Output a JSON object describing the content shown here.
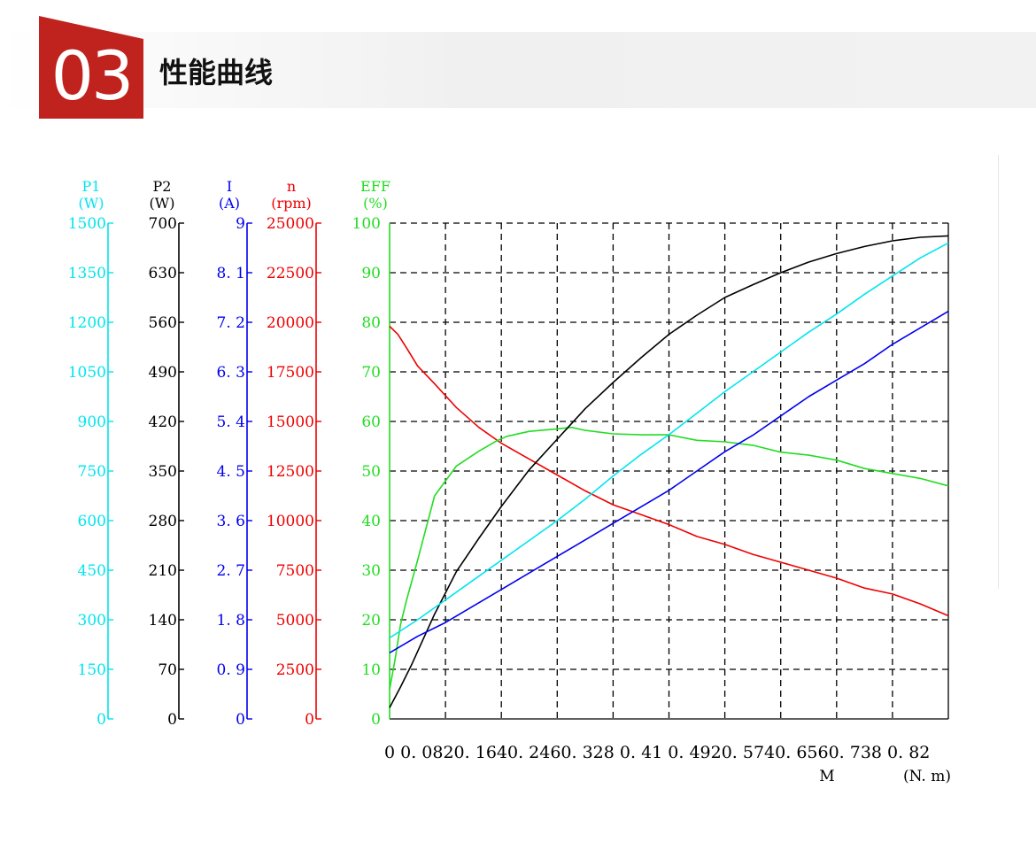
{
  "header": {
    "number": "03",
    "title": "性能曲线",
    "accent_color": "#c0221e"
  },
  "chart_data": {
    "type": "line",
    "x": {
      "ticks": [
        "0",
        "0.082",
        "0.164",
        "0.246",
        "0.328",
        "0.41",
        "0.492",
        "0.574",
        "0.656",
        "0.738",
        "0.82"
      ],
      "tick_label_text": "0   0. 0820. 1640. 2460. 328 0. 41 0. 4920. 5740. 6560. 738 0. 82",
      "label": "M",
      "unit": "(N. m)",
      "range": [
        0,
        0.82
      ]
    },
    "grid": true,
    "axes": [
      {
        "key": "P1",
        "name": "P1",
        "unit": "(W)",
        "color": "#00e5ee",
        "range": [
          0,
          1500
        ],
        "ticks": [
          "1500",
          "1350",
          "1200",
          "1050",
          "900",
          "750",
          "600",
          "450",
          "300",
          "150",
          "0"
        ]
      },
      {
        "key": "P2",
        "name": "P2",
        "unit": "(W)",
        "color": "#000000",
        "range": [
          0,
          700
        ],
        "ticks": [
          "700",
          "630",
          "560",
          "490",
          "420",
          "350",
          "280",
          "210",
          "140",
          "70",
          "0"
        ]
      },
      {
        "key": "I",
        "name": "I",
        "unit": "(A)",
        "color": "#0000ee",
        "range": [
          0,
          9
        ],
        "ticks": [
          "9",
          "8. 1",
          "7. 2",
          "6. 3",
          "5. 4",
          "4. 5",
          "3. 6",
          "2. 7",
          "1. 8",
          "0. 9",
          "0"
        ]
      },
      {
        "key": "n",
        "name": "n",
        "unit": "(rpm)",
        "color": "#ee0000",
        "range": [
          0,
          25000
        ],
        "ticks": [
          "25000",
          "22500",
          "20000",
          "17500",
          "15000",
          "12500",
          "10000",
          "7500",
          "5000",
          "2500",
          "0"
        ]
      },
      {
        "key": "EFF",
        "name": "EFF",
        "unit": "(%)",
        "color": "#22dd22",
        "range": [
          0,
          100
        ],
        "ticks": [
          "100",
          "90",
          "80",
          "70",
          "60",
          "50",
          "40",
          "30",
          "20",
          "10",
          "0"
        ]
      }
    ],
    "series": [
      {
        "axis": "n",
        "color": "#ee0000",
        "x": [
          0,
          0.012,
          0.025,
          0.041,
          0.066,
          0.098,
          0.131,
          0.164,
          0.205,
          0.246,
          0.287,
          0.328,
          0.369,
          0.41,
          0.451,
          0.492,
          0.533,
          0.574,
          0.615,
          0.656,
          0.697,
          0.738,
          0.779,
          0.82
        ],
        "values": [
          19800,
          19400,
          18700,
          17800,
          16900,
          15700,
          14700,
          13900,
          13100,
          12300,
          11500,
          10800,
          10300,
          9800,
          9200,
          8800,
          8300,
          7900,
          7500,
          7100,
          6600,
          6300,
          5800,
          5200
        ]
      },
      {
        "axis": "EFF",
        "color": "#22dd22",
        "x": [
          0,
          0.008,
          0.016,
          0.025,
          0.041,
          0.066,
          0.098,
          0.131,
          0.156,
          0.172,
          0.205,
          0.246,
          0.267,
          0.287,
          0.328,
          0.369,
          0.41,
          0.451,
          0.492,
          0.533,
          0.574,
          0.615,
          0.656,
          0.697,
          0.738,
          0.779,
          0.82
        ],
        "values": [
          6,
          12,
          19,
          24,
          32,
          45,
          51,
          54,
          56,
          57,
          58,
          58.5,
          58.8,
          58.2,
          57.5,
          57.3,
          57.3,
          56.2,
          55.9,
          55.2,
          53.8,
          53.2,
          52.2,
          50.5,
          49.5,
          48.5,
          47
        ]
      },
      {
        "axis": "P2",
        "color": "#000000",
        "x": [
          0,
          0.016,
          0.033,
          0.049,
          0.066,
          0.098,
          0.131,
          0.164,
          0.205,
          0.246,
          0.287,
          0.328,
          0.369,
          0.41,
          0.451,
          0.492,
          0.533,
          0.574,
          0.615,
          0.656,
          0.697,
          0.738,
          0.779,
          0.82
        ],
        "values": [
          16,
          45,
          78,
          112,
          148,
          208,
          255,
          300,
          352,
          395,
          438,
          475,
          510,
          543,
          570,
          595,
          613,
          630,
          645,
          657,
          667,
          675,
          680,
          682
        ]
      },
      {
        "axis": "P1",
        "color": "#00e5ee",
        "x": [
          0,
          0.041,
          0.082,
          0.123,
          0.164,
          0.205,
          0.246,
          0.287,
          0.328,
          0.369,
          0.41,
          0.451,
          0.492,
          0.533,
          0.574,
          0.615,
          0.656,
          0.697,
          0.738,
          0.779,
          0.82
        ],
        "values": [
          245,
          300,
          360,
          420,
          480,
          540,
          600,
          665,
          735,
          800,
          860,
          925,
          990,
          1050,
          1110,
          1170,
          1225,
          1285,
          1340,
          1395,
          1440
        ]
      },
      {
        "axis": "I",
        "color": "#0000ee",
        "x": [
          0,
          0.041,
          0.082,
          0.123,
          0.164,
          0.205,
          0.246,
          0.287,
          0.328,
          0.369,
          0.41,
          0.451,
          0.492,
          0.533,
          0.574,
          0.615,
          0.656,
          0.697,
          0.738,
          0.779,
          0.82
        ],
        "values": [
          1.2,
          1.5,
          1.75,
          2.05,
          2.35,
          2.65,
          2.95,
          3.25,
          3.55,
          3.85,
          4.15,
          4.5,
          4.85,
          5.15,
          5.5,
          5.85,
          6.15,
          6.45,
          6.8,
          7.1,
          7.4
        ]
      }
    ]
  }
}
